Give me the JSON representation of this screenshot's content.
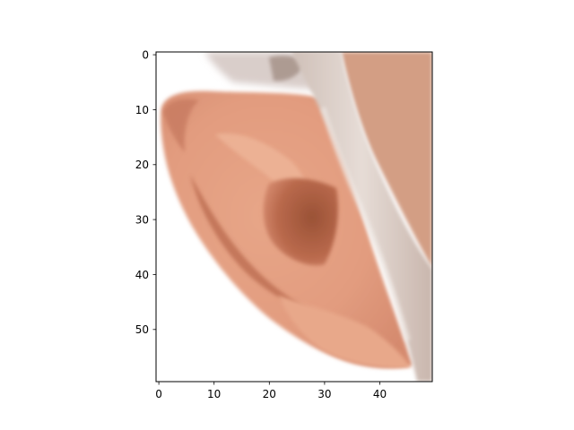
{
  "figure": {
    "kind": "image-plot",
    "subject": "ear-crop",
    "x_ticks": [
      "0",
      "10",
      "20",
      "30",
      "40"
    ],
    "y_ticks": [
      "0",
      "10",
      "20",
      "30",
      "40",
      "50"
    ],
    "x_range": [
      -0.5,
      49.5
    ],
    "y_range": [
      -0.5,
      59.5
    ],
    "colors": {
      "skin_light": "#E9A98E",
      "skin_mid": "#D88A70",
      "skin_dark": "#B86A50",
      "concha_shadow": "#9E5438",
      "hair": "#D8CCC6",
      "cheek": "#D5A085",
      "background": "#FFFFFF"
    }
  }
}
